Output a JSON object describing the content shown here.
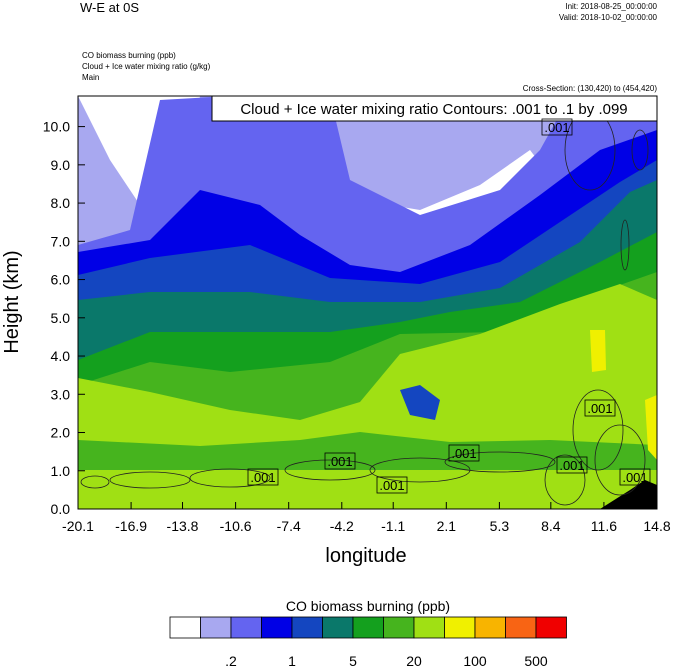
{
  "chart_data": {
    "type": "contour",
    "title": "W-E at 0S",
    "init": "Init: 2018-08-25_00:00:00",
    "valid": "Valid: 2018-10-02_00:00:00",
    "field_labels": [
      "CO biomass burning   (ppb)",
      "Cloud + Ice water mixing ratio   (g/kg)",
      "Main"
    ],
    "cross_section": "Cross-Section: (130,420) to (454,420)",
    "contour_annotation": "Cloud + Ice water mixing ratio Contours: .001 to .1 by .099",
    "xlabel": "longitude",
    "ylabel": "Height (km)",
    "xlim": [
      -20.1,
      14.8
    ],
    "xticks": [
      -20.1,
      -16.9,
      -13.8,
      -10.6,
      -7.4,
      -4.2,
      -1.1,
      2.1,
      5.3,
      8.4,
      11.6,
      14.8
    ],
    "ylim": [
      0,
      10.8
    ],
    "yticks": [
      {
        "value": 0,
        "label": "0.0"
      },
      {
        "value": 1,
        "label": "1.0"
      },
      {
        "value": 2,
        "label": "2.0"
      },
      {
        "value": 3,
        "label": "3.0"
      },
      {
        "value": 4,
        "label": "4.0"
      },
      {
        "value": 5,
        "label": "5.0"
      },
      {
        "value": 6,
        "label": "6.0"
      },
      {
        "value": 7,
        "label": "7.0"
      },
      {
        "value": 8,
        "label": "8.0"
      },
      {
        "value": 9,
        "label": "9.0"
      },
      {
        "value": 10,
        "label": "10.0"
      }
    ],
    "contour_labels": [
      ".001",
      ".001",
      ".001",
      ".001",
      ".001",
      ".001",
      ".001",
      ".001"
    ],
    "colorbar": {
      "title": "CO biomass burning  (ppb)",
      "colors": [
        "#ffffff",
        "#a8a8f0",
        "#6464f0",
        "#0000e6",
        "#1446c0",
        "#0a786a",
        "#14a01e",
        "#46b41e",
        "#a0e014",
        "#f0f000",
        "#f8b400",
        "#f86414",
        "#f00000"
      ],
      "ticks": [
        {
          "value": 0.2,
          "label": ".2"
        },
        1,
        5,
        20,
        100,
        500
      ]
    }
  }
}
